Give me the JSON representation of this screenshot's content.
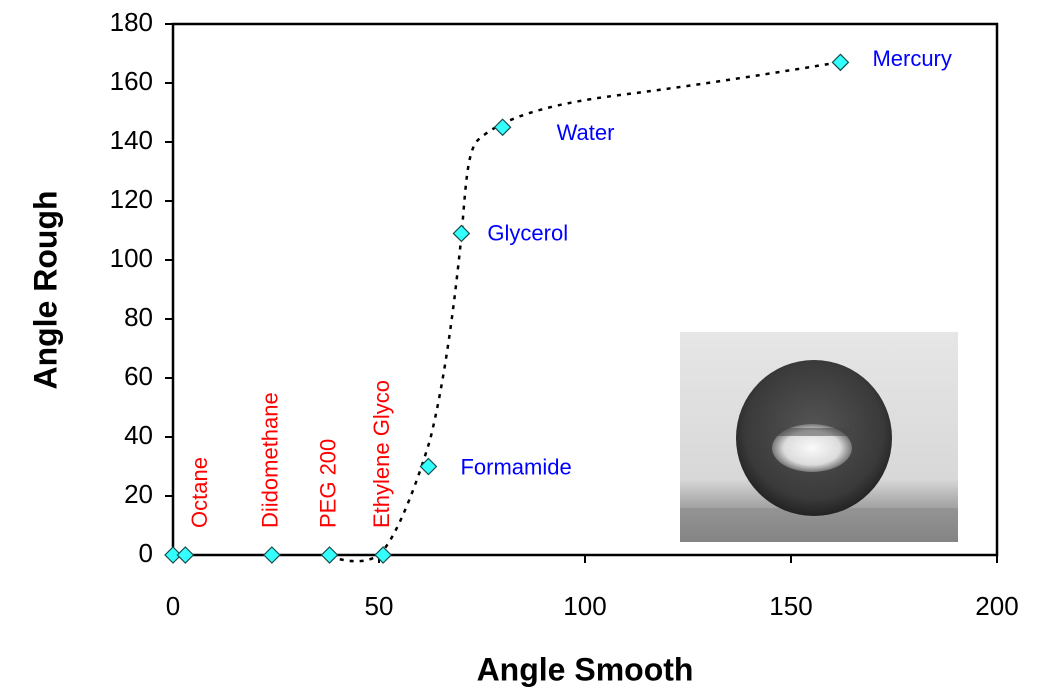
{
  "chart_data": {
    "type": "scatter",
    "x_label": "Angle Smooth",
    "y_label": "Angle Rough",
    "x": [
      0,
      3,
      24,
      38,
      51,
      62,
      70,
      80,
      162
    ],
    "values": [
      0,
      0,
      0,
      0,
      0,
      30,
      109,
      145,
      167
    ],
    "point_labels": [
      null,
      "Octane",
      "Diidomethane",
      "PEG 200",
      "Ethylene Glyco",
      "Formamide",
      "Glycerol",
      "Water",
      "Mercury"
    ],
    "label_colors": [
      null,
      "#ff0000",
      "#ff0000",
      "#ff0000",
      "#ff0000",
      "#0000ff",
      "#0000ff",
      "#0000ff",
      "#0000ff"
    ],
    "marker_color": "#33ffff",
    "xlim": [
      0,
      200
    ],
    "ylim": [
      0,
      180
    ],
    "xticks": [
      0,
      50,
      100,
      150,
      200
    ],
    "yticks": [
      0,
      20,
      40,
      60,
      80,
      100,
      120,
      140,
      160,
      180
    ]
  }
}
